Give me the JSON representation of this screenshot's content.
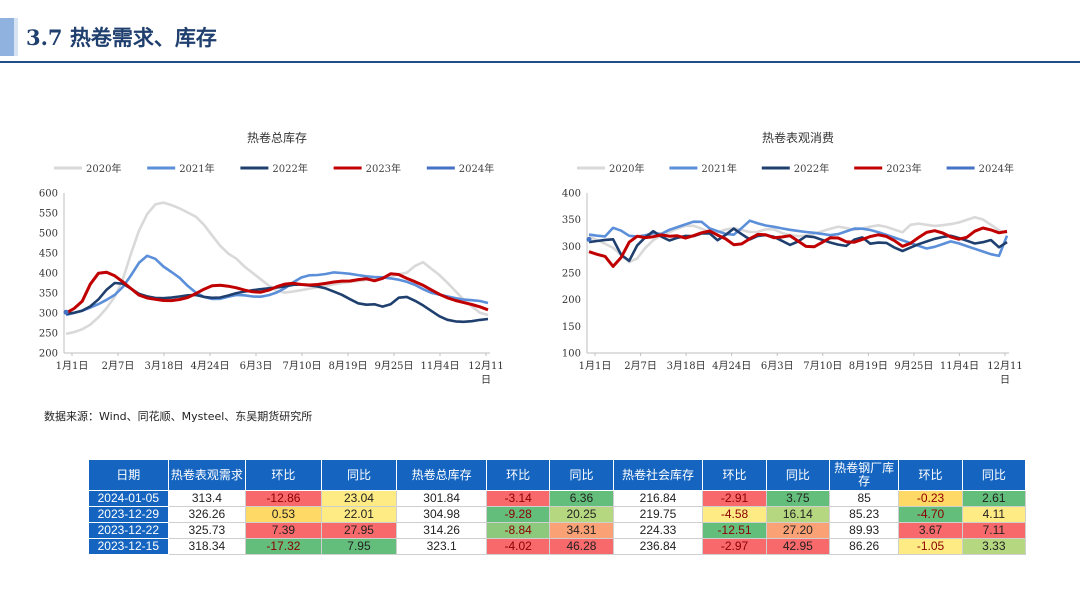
{
  "header": {
    "title": "3.7 热卷需求、库存"
  },
  "source": "数据来源：Wind、同花顺、Mysteel、东吴期货研究所",
  "colors": {
    "2020年": "#d9d9d9",
    "2021年": "#5b8fd9",
    "2022年": "#1f3f6e",
    "2023年": "#c00000",
    "2024年": "#4472c4",
    "header_blue": "#1565c0",
    "good_green": "#63be7b",
    "bad_red": "#f8696b",
    "mid_yellow": "#ffeb84"
  },
  "chart_data": [
    {
      "id": "left",
      "type": "line",
      "title": "热卷总库存",
      "ylim": [
        200,
        600
      ],
      "yticks": [
        200,
        250,
        300,
        350,
        400,
        450,
        500,
        550,
        600
      ],
      "xticks": [
        "1月1日",
        "2月7日",
        "3月18日",
        "4月24日",
        "6月3日",
        "7月10日",
        "8月19日",
        "9月25日",
        "11月4日",
        "12月11日"
      ],
      "legend": "top",
      "series": [
        {
          "name": "2020年",
          "values": [
            248,
            252,
            258,
            268,
            285,
            305,
            330,
            360,
            420,
            480,
            530,
            560,
            578,
            575,
            568,
            560,
            550,
            540,
            520,
            495,
            470,
            450,
            440,
            420,
            405,
            390,
            375,
            360,
            350,
            352,
            355,
            358,
            362,
            365,
            368,
            372,
            375,
            378,
            380,
            382,
            385,
            387,
            390,
            395,
            400,
            402,
            435,
            420,
            405,
            390,
            370,
            350,
            330,
            315,
            300,
            295
          ]
        },
        {
          "name": "2021年",
          "values": [
            295,
            300,
            305,
            312,
            320,
            330,
            340,
            355,
            380,
            410,
            440,
            445,
            430,
            410,
            400,
            385,
            365,
            350,
            340,
            335,
            335,
            340,
            345,
            345,
            342,
            340,
            342,
            348,
            355,
            368,
            382,
            392,
            395,
            395,
            398,
            402,
            400,
            398,
            395,
            392,
            390,
            390,
            387,
            385,
            380,
            375,
            365,
            355,
            348,
            345,
            340,
            336,
            333,
            332,
            330,
            325
          ]
        },
        {
          "name": "2022年",
          "values": [
            298,
            300,
            304,
            312,
            325,
            345,
            368,
            378,
            372,
            360,
            348,
            342,
            338,
            337,
            337,
            340,
            342,
            345,
            345,
            340,
            338,
            338,
            342,
            348,
            352,
            355,
            358,
            360,
            362,
            364,
            366,
            370,
            372,
            370,
            368,
            365,
            360,
            352,
            345,
            335,
            325,
            320,
            323,
            320,
            312,
            328,
            342,
            340,
            330,
            320,
            308,
            295,
            285,
            280,
            278,
            278,
            280,
            283,
            285
          ]
        },
        {
          "name": "2023年",
          "values": [
            300,
            310,
            320,
            360,
            395,
            405,
            400,
            390,
            375,
            360,
            345,
            338,
            335,
            332,
            330,
            332,
            335,
            340,
            350,
            360,
            368,
            370,
            368,
            365,
            360,
            355,
            352,
            352,
            358,
            366,
            372,
            375,
            372,
            370,
            370,
            372,
            375,
            378,
            380,
            380,
            383,
            387,
            382,
            378,
            395,
            400,
            395,
            385,
            378,
            370,
            360,
            350,
            340,
            335,
            328,
            325,
            320,
            315,
            308
          ]
        },
        {
          "name": "2024年",
          "values": [
            302
          ]
        }
      ]
    },
    {
      "id": "right",
      "type": "line",
      "title": "热卷表观消费",
      "ylim": [
        100,
        400
      ],
      "yticks": [
        100,
        150,
        200,
        250,
        300,
        350,
        400
      ],
      "xticks": [
        "1月1日",
        "2月7日",
        "3月18日",
        "4月24日",
        "6月3日",
        "7月10日",
        "8月19日",
        "9月25日",
        "11月4日",
        "12月11日"
      ],
      "legend": "top",
      "series": [
        {
          "name": "2020年",
          "values": [
            318,
            312,
            305,
            298,
            285,
            270,
            275,
            295,
            310,
            320,
            325,
            332,
            338,
            340,
            335,
            328,
            325,
            330,
            335,
            332,
            328,
            325,
            330,
            335,
            328,
            322,
            320,
            318,
            322,
            326,
            330,
            335,
            338,
            332,
            330,
            335,
            338,
            340,
            335,
            330,
            325,
            345,
            342,
            340,
            338,
            340,
            342,
            345,
            350,
            355,
            350,
            340,
            330,
            325
          ]
        },
        {
          "name": "2021年",
          "values": [
            322,
            320,
            318,
            335,
            330,
            320,
            318,
            320,
            325,
            322,
            330,
            335,
            340,
            345,
            350,
            335,
            330,
            325,
            320,
            325,
            350,
            345,
            340,
            338,
            335,
            332,
            330,
            328,
            326,
            325,
            322,
            320,
            325,
            330,
            335,
            332,
            330,
            325,
            320,
            315,
            310,
            305,
            300,
            295,
            300,
            305,
            310,
            305,
            300,
            295,
            290,
            285,
            282,
            320
          ]
        },
        {
          "name": "2022年",
          "values": [
            308,
            310,
            312,
            315,
            285,
            270,
            300,
            315,
            330,
            320,
            310,
            315,
            320,
            318,
            322,
            330,
            310,
            315,
            335,
            330,
            310,
            318,
            322,
            320,
            315,
            305,
            300,
            318,
            320,
            315,
            310,
            305,
            302,
            300,
            320,
            315,
            300,
            310,
            305,
            295,
            290,
            300,
            305,
            310,
            315,
            318,
            320,
            315,
            310,
            305,
            308,
            312,
            298,
            308
          ]
        },
        {
          "name": "2023年",
          "values": [
            290,
            285,
            285,
            260,
            270,
            300,
            320,
            318,
            315,
            320,
            322,
            318,
            320,
            315,
            320,
            325,
            330,
            322,
            318,
            305,
            300,
            310,
            318,
            325,
            320,
            315,
            318,
            320,
            310,
            300,
            298,
            305,
            315,
            318,
            312,
            305,
            310,
            315,
            320,
            322,
            318,
            310,
            300,
            305,
            315,
            325,
            330,
            328,
            320,
            315,
            312,
            320,
            332,
            335,
            330,
            325,
            328
          ]
        },
        {
          "name": "2024年",
          "values": [
            313
          ]
        }
      ]
    }
  ],
  "table": {
    "headers": [
      "日期",
      "热卷表观需求",
      "环比",
      "同比",
      "热卷总库存",
      "环比",
      "同比",
      "热卷社会库存",
      "环比",
      "同比",
      "热卷钢厂库存",
      "环比",
      "同比"
    ],
    "rows": [
      {
        "cells": [
          "2024-01-05",
          "313.4",
          "-12.86",
          "23.04",
          "301.84",
          "-3.14",
          "6.36",
          "216.84",
          "-2.91",
          "3.75",
          "85",
          "-0.23",
          "2.61"
        ],
        "fills": [
          "",
          "",
          "#f8696b",
          "#ffeb84",
          "",
          "#f8696b",
          "#63be7b",
          "",
          "#f8696b",
          "#63be7b",
          "",
          "#ffd966",
          "#63be7b"
        ],
        "text_colors": [
          "",
          "",
          "#8b0000",
          "",
          "",
          "#8b0000",
          "",
          "",
          "#8b0000",
          "",
          "",
          "#8b0000",
          ""
        ]
      },
      {
        "cells": [
          "2023-12-29",
          "326.26",
          "0.53",
          "22.01",
          "304.98",
          "-9.28",
          "20.25",
          "219.75",
          "-4.58",
          "16.14",
          "85.23",
          "-4.70",
          "4.11"
        ],
        "fills": [
          "",
          "",
          "#ffd966",
          "#ffeb84",
          "",
          "#63be7b",
          "#b5d77f",
          "",
          "#ffeb84",
          "#b5d77f",
          "",
          "#63be7b",
          "#ffeb84"
        ],
        "text_colors": [
          "",
          "",
          "",
          "",
          "",
          "#8b0000",
          "",
          "",
          "#8b0000",
          "",
          "",
          "#8b0000",
          ""
        ]
      },
      {
        "cells": [
          "2023-12-22",
          "325.73",
          "7.39",
          "27.95",
          "314.26",
          "-8.84",
          "34.31",
          "224.33",
          "-12.51",
          "27.20",
          "89.93",
          "3.67",
          "7.11"
        ],
        "fills": [
          "",
          "",
          "#f8696b",
          "#f8696b",
          "",
          "#8cc97d",
          "#fba176",
          "",
          "#63be7b",
          "#fba176",
          "",
          "#f8696b",
          "#f8696b"
        ],
        "text_colors": [
          "",
          "",
          "",
          "",
          "",
          "#8b0000",
          "",
          "",
          "#8b0000",
          "",
          "",
          "",
          ""
        ]
      },
      {
        "cells": [
          "2023-12-15",
          "318.34",
          "-17.32",
          "7.95",
          "323.1",
          "-4.02",
          "46.28",
          "236.84",
          "-2.97",
          "42.95",
          "86.26",
          "-1.05",
          "3.33"
        ],
        "fills": [
          "",
          "",
          "#63be7b",
          "#63be7b",
          "",
          "#f8696b",
          "#f8696b",
          "",
          "#f8696b",
          "#f8696b",
          "",
          "#ffeb84",
          "#b5d77f"
        ],
        "text_colors": [
          "",
          "",
          "#8b0000",
          "",
          "",
          "#8b0000",
          "",
          "",
          "#8b0000",
          "",
          "",
          "#8b0000",
          ""
        ]
      }
    ]
  }
}
